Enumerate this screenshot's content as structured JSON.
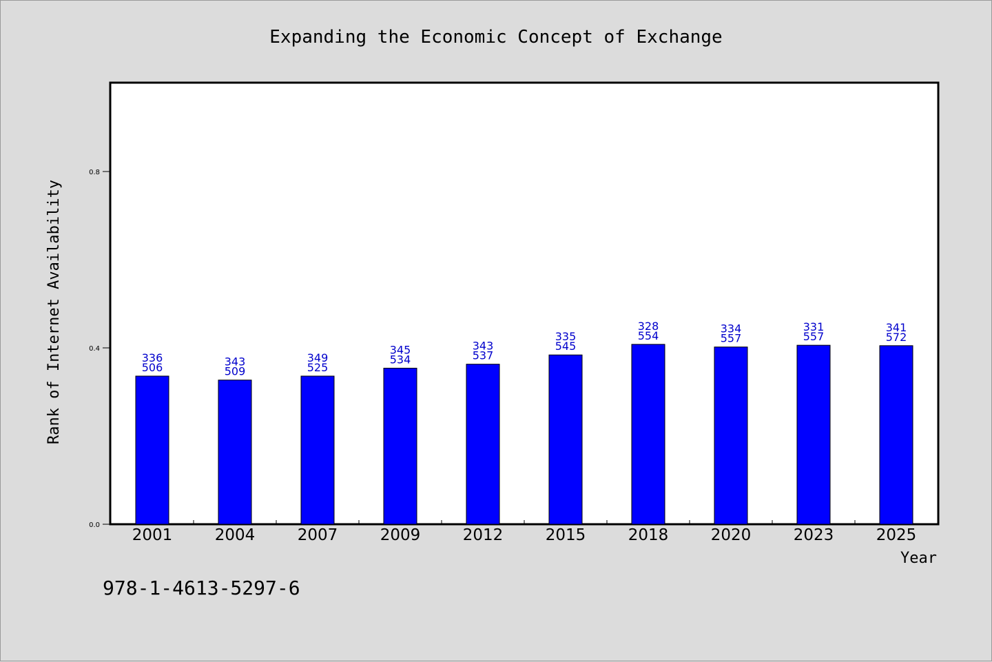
{
  "chart_data": {
    "type": "bar",
    "title": "Expanding the Economic Concept of Exchange",
    "xlabel": "Year",
    "ylabel": "Rank of Internet Availability",
    "categories": [
      "2001",
      "2004",
      "2007",
      "2009",
      "2012",
      "2015",
      "2018",
      "2020",
      "2023",
      "2025"
    ],
    "values": [
      0.336,
      0.327,
      0.336,
      0.354,
      0.363,
      0.384,
      0.408,
      0.402,
      0.406,
      0.405
    ],
    "bar_labels_top": [
      "336",
      "343",
      "349",
      "345",
      "343",
      "335",
      "328",
      "334",
      "331",
      "341"
    ],
    "bar_labels_bottom": [
      "506",
      "509",
      "525",
      "534",
      "537",
      "545",
      "554",
      "557",
      "557",
      "572"
    ],
    "ylim": [
      0,
      1.0
    ],
    "yticks": [
      0.0,
      0.4,
      0.8
    ],
    "ytick_labels": [
      "0.0",
      "0.4",
      "0.8"
    ],
    "grid": false,
    "bar_color": "#0000ff",
    "label_color": "#0000cc",
    "background": "#dcdcdc",
    "plot_background": "#ffffff"
  },
  "footnote": "978-1-4613-5297-6"
}
